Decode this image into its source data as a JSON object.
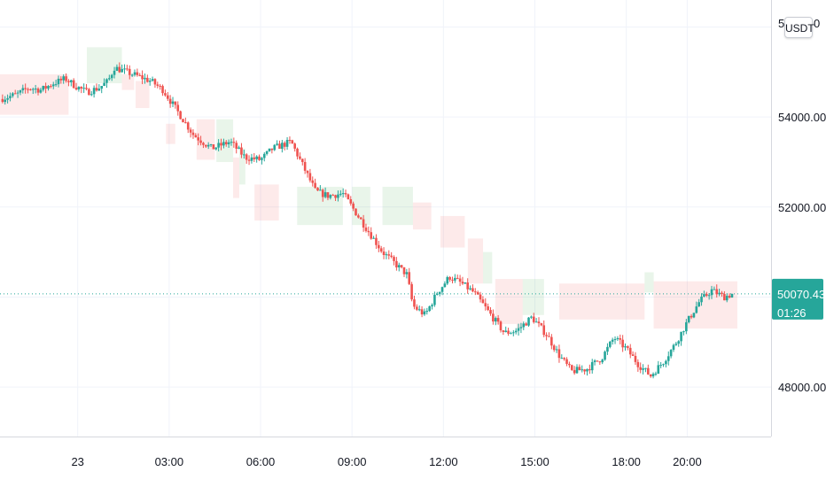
{
  "chart_data": {
    "type": "candlestick",
    "currency": "USDT",
    "ylim": [
      46900,
      56600
    ],
    "y_ticks": [
      {
        "value": 48000,
        "label": "48000.00"
      },
      {
        "value": 52000,
        "label": "52000.00"
      },
      {
        "value": 54000,
        "label": "54000.00"
      }
    ],
    "top_tick_fragment": "5",
    "top_tick_fragment_tail": "0",
    "x_ticks": [
      {
        "hour": 0,
        "label": "23"
      },
      {
        "hour": 3,
        "label": "03:00"
      },
      {
        "hour": 6,
        "label": "06:00"
      },
      {
        "hour": 9,
        "label": "09:00"
      },
      {
        "hour": 12,
        "label": "12:00"
      },
      {
        "hour": 15,
        "label": "15:00"
      },
      {
        "hour": 18,
        "label": "18:00"
      },
      {
        "hour": 20,
        "label": "20:00"
      }
    ],
    "xlim_hours": [
      -2.55,
      22.75
    ],
    "last_price": {
      "value": 50070.43,
      "label": "50070.43",
      "countdown": "01:26"
    },
    "close_path": [
      [
        -2.55,
        54400
      ],
      [
        -2.0,
        54500
      ],
      [
        -1.6,
        54650
      ],
      [
        -1.2,
        54600
      ],
      [
        -0.8,
        54750
      ],
      [
        -0.4,
        54850
      ],
      [
        -0.1,
        54700
      ],
      [
        0.3,
        54550
      ],
      [
        0.7,
        54650
      ],
      [
        1.0,
        54800
      ],
      [
        1.2,
        55100
      ],
      [
        1.6,
        55000
      ],
      [
        2.0,
        54900
      ],
      [
        2.4,
        54800
      ],
      [
        2.8,
        54600
      ],
      [
        3.2,
        54200
      ],
      [
        3.8,
        53600
      ],
      [
        4.4,
        53300
      ],
      [
        5.0,
        53450
      ],
      [
        5.5,
        53100
      ],
      [
        6.0,
        53050
      ],
      [
        6.4,
        53300
      ],
      [
        7.0,
        53450
      ],
      [
        7.4,
        52900
      ],
      [
        7.8,
        52350
      ],
      [
        8.2,
        52250
      ],
      [
        8.7,
        52300
      ],
      [
        9.1,
        51900
      ],
      [
        9.6,
        51400
      ],
      [
        10.0,
        51000
      ],
      [
        10.4,
        50750
      ],
      [
        10.8,
        50500
      ],
      [
        11.0,
        49800
      ],
      [
        11.4,
        49600
      ],
      [
        11.8,
        50100
      ],
      [
        12.2,
        50450
      ],
      [
        12.6,
        50300
      ],
      [
        13.0,
        50100
      ],
      [
        13.5,
        49650
      ],
      [
        14.0,
        49200
      ],
      [
        14.4,
        49250
      ],
      [
        14.9,
        49550
      ],
      [
        15.4,
        49150
      ],
      [
        15.8,
        48700
      ],
      [
        16.2,
        48350
      ],
      [
        16.7,
        48400
      ],
      [
        17.2,
        48650
      ],
      [
        17.6,
        49100
      ],
      [
        18.0,
        48850
      ],
      [
        18.4,
        48500
      ],
      [
        18.8,
        48250
      ],
      [
        19.2,
        48550
      ],
      [
        19.6,
        48950
      ],
      [
        20.0,
        49450
      ],
      [
        20.4,
        49900
      ],
      [
        20.8,
        50150
      ],
      [
        21.2,
        50000
      ],
      [
        21.5,
        50070
      ]
    ],
    "zones": [
      {
        "kind": "bearish",
        "x0": -2.55,
        "x1": -0.3,
        "y0": 54050,
        "y1": 54950
      },
      {
        "kind": "bullish",
        "x0": 0.3,
        "x1": 1.45,
        "y0": 54750,
        "y1": 55550
      },
      {
        "kind": "bearish",
        "x0": 1.45,
        "x1": 1.85,
        "y0": 54600,
        "y1": 54950
      },
      {
        "kind": "bearish",
        "x0": 1.9,
        "x1": 2.35,
        "y0": 54200,
        "y1": 54800
      },
      {
        "kind": "bearish",
        "x0": 2.9,
        "x1": 3.2,
        "y0": 53400,
        "y1": 53850
      },
      {
        "kind": "bearish",
        "x0": 3.9,
        "x1": 4.5,
        "y0": 53050,
        "y1": 53950
      },
      {
        "kind": "bullish",
        "x0": 4.55,
        "x1": 5.1,
        "y0": 53000,
        "y1": 53950
      },
      {
        "kind": "bearish",
        "x0": 5.1,
        "x1": 5.3,
        "y0": 52200,
        "y1": 53100
      },
      {
        "kind": "bullish",
        "x0": 5.3,
        "x1": 5.5,
        "y0": 52500,
        "y1": 53300
      },
      {
        "kind": "bearish",
        "x0": 5.8,
        "x1": 6.6,
        "y0": 51700,
        "y1": 52500
      },
      {
        "kind": "bullish",
        "x0": 7.2,
        "x1": 8.7,
        "y0": 51600,
        "y1": 52450
      },
      {
        "kind": "bullish",
        "x0": 9.0,
        "x1": 9.6,
        "y0": 51600,
        "y1": 52450
      },
      {
        "kind": "bullish",
        "x0": 10.0,
        "x1": 11.0,
        "y0": 51600,
        "y1": 52450
      },
      {
        "kind": "bearish",
        "x0": 11.0,
        "x1": 11.6,
        "y0": 51500,
        "y1": 52100
      },
      {
        "kind": "bearish",
        "x0": 11.9,
        "x1": 12.7,
        "y0": 51100,
        "y1": 51800
      },
      {
        "kind": "bearish",
        "x0": 12.8,
        "x1": 13.3,
        "y0": 50300,
        "y1": 51300
      },
      {
        "kind": "bullish",
        "x0": 13.3,
        "x1": 13.6,
        "y0": 50300,
        "y1": 51000
      },
      {
        "kind": "bearish",
        "x0": 13.7,
        "x1": 14.4,
        "y0": 49400,
        "y1": 50400
      },
      {
        "kind": "bearish",
        "x0": 14.4,
        "x1": 14.6,
        "y0": 49300,
        "y1": 50400
      },
      {
        "kind": "bullish",
        "x0": 14.6,
        "x1": 15.3,
        "y0": 49600,
        "y1": 50400
      },
      {
        "kind": "bearish",
        "x0": 15.8,
        "x1": 18.6,
        "y0": 49500,
        "y1": 50300
      },
      {
        "kind": "bullish",
        "x0": 18.6,
        "x1": 18.9,
        "y0": 50100,
        "y1": 50550
      },
      {
        "kind": "bearish",
        "x0": 18.9,
        "x1": 30.5,
        "y0": 49300,
        "y1": 50350
      }
    ],
    "colors": {
      "up": "#26a69a",
      "down": "#ef5350",
      "bullish_zone": "rgba(76, 175, 80, 0.12)",
      "bearish_zone": "rgba(239, 83, 80, 0.12)",
      "grid": "#f0f3fa",
      "axis": "#d6d8de",
      "price_line": "#26a69a",
      "badge": "#26a69a"
    }
  }
}
